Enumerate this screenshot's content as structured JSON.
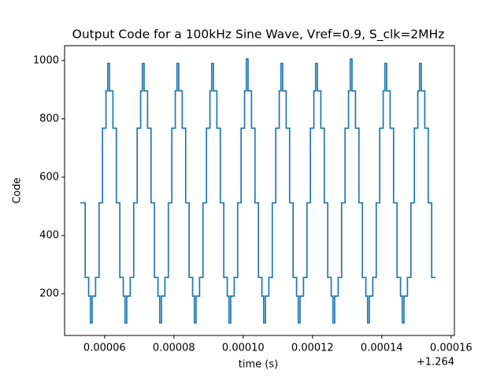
{
  "chart_data": {
    "type": "step",
    "title": "Output Code for a 100kHz Sine Wave, Vref=0.9, S_clk=2MHz",
    "x_label": "time (s)",
    "y_label": "Code",
    "x_offset_text": "+1.264",
    "xlim": [
      4.845e-05,
      0.00016095
    ],
    "ylim": [
      57,
      1051
    ],
    "xticks": [
      {
        "value": 6e-05,
        "label": "0.00006"
      },
      {
        "value": 8e-05,
        "label": "0.00008"
      },
      {
        "value": 0.0001,
        "label": "0.00010"
      },
      {
        "value": 0.00012,
        "label": "0.00012"
      },
      {
        "value": 0.00014,
        "label": "0.00014"
      },
      {
        "value": 0.00016,
        "label": "0.00016"
      }
    ],
    "yticks": [
      200,
      400,
      600,
      800,
      1000
    ],
    "grid": false,
    "series": [
      {
        "color": "#1f77b4",
        "x": [
          5.3e-05,
          5.44e-05,
          5.54e-05,
          5.59e-05,
          5.64e-05,
          5.74e-05,
          5.84e-05,
          5.94e-05,
          6.04e-05,
          6.09e-05,
          6.14e-05,
          6.24e-05,
          6.34e-05,
          6.44e-05,
          6.54e-05,
          6.59e-05,
          6.64e-05,
          6.74e-05,
          6.84e-05,
          6.94e-05,
          7.04e-05,
          7.09e-05,
          7.14e-05,
          7.24e-05,
          7.34e-05,
          7.44e-05,
          7.54e-05,
          7.59e-05,
          7.64e-05,
          7.74e-05,
          7.84e-05,
          7.94e-05,
          8.04e-05,
          8.09e-05,
          8.14e-05,
          8.24e-05,
          8.34e-05,
          8.44e-05,
          8.54e-05,
          8.59e-05,
          8.64e-05,
          8.74e-05,
          8.84e-05,
          8.94e-05,
          9.04e-05,
          9.09e-05,
          9.14e-05,
          9.24e-05,
          9.34e-05,
          9.44e-05,
          9.54e-05,
          9.59e-05,
          9.64e-05,
          9.74e-05,
          9.84e-05,
          9.94e-05,
          0.0001004,
          0.0001009,
          0.0001014,
          0.0001024,
          0.0001034,
          0.0001044,
          0.0001054,
          0.0001059,
          0.0001064,
          0.0001074,
          0.0001084,
          0.0001094,
          0.0001104,
          0.0001109,
          0.0001114,
          0.0001124,
          0.0001134,
          0.0001144,
          0.0001154,
          0.0001159,
          0.0001164,
          0.0001174,
          0.0001184,
          0.0001194,
          0.0001204,
          0.0001209,
          0.0001214,
          0.0001224,
          0.0001234,
          0.0001244,
          0.0001254,
          0.0001259,
          0.0001264,
          0.0001274,
          0.0001284,
          0.0001294,
          0.0001304,
          0.0001309,
          0.0001314,
          0.0001324,
          0.0001334,
          0.0001344,
          0.0001354,
          0.0001359,
          0.0001364,
          0.0001374,
          0.0001384,
          0.0001394,
          0.0001404,
          0.0001409,
          0.0001414,
          0.0001424,
          0.0001434,
          0.0001444,
          0.0001454,
          0.0001459,
          0.0001464,
          0.0001474,
          0.0001484,
          0.0001494,
          0.0001504,
          0.0001509,
          0.0001514,
          0.0001524,
          0.0001534,
          0.0001544,
          0.0001555
        ],
        "values": [
          512,
          256,
          192,
          100,
          192,
          256,
          512,
          768,
          896,
          990,
          896,
          768,
          512,
          256,
          192,
          100,
          192,
          256,
          512,
          768,
          896,
          990,
          896,
          768,
          512,
          256,
          192,
          100,
          192,
          256,
          512,
          768,
          896,
          990,
          896,
          768,
          512,
          256,
          192,
          100,
          192,
          256,
          512,
          768,
          896,
          990,
          896,
          768,
          512,
          256,
          192,
          100,
          192,
          256,
          512,
          768,
          896,
          1005,
          896,
          768,
          512,
          256,
          192,
          100,
          192,
          256,
          512,
          768,
          896,
          990,
          896,
          768,
          512,
          256,
          192,
          100,
          192,
          256,
          512,
          768,
          896,
          990,
          896,
          768,
          512,
          256,
          192,
          100,
          192,
          256,
          512,
          768,
          896,
          1005,
          896,
          768,
          512,
          256,
          192,
          100,
          192,
          256,
          512,
          768,
          896,
          990,
          896,
          768,
          512,
          256,
          192,
          100,
          192,
          256,
          512,
          768,
          896,
          990,
          896,
          768,
          512,
          256,
          256
        ]
      }
    ]
  }
}
